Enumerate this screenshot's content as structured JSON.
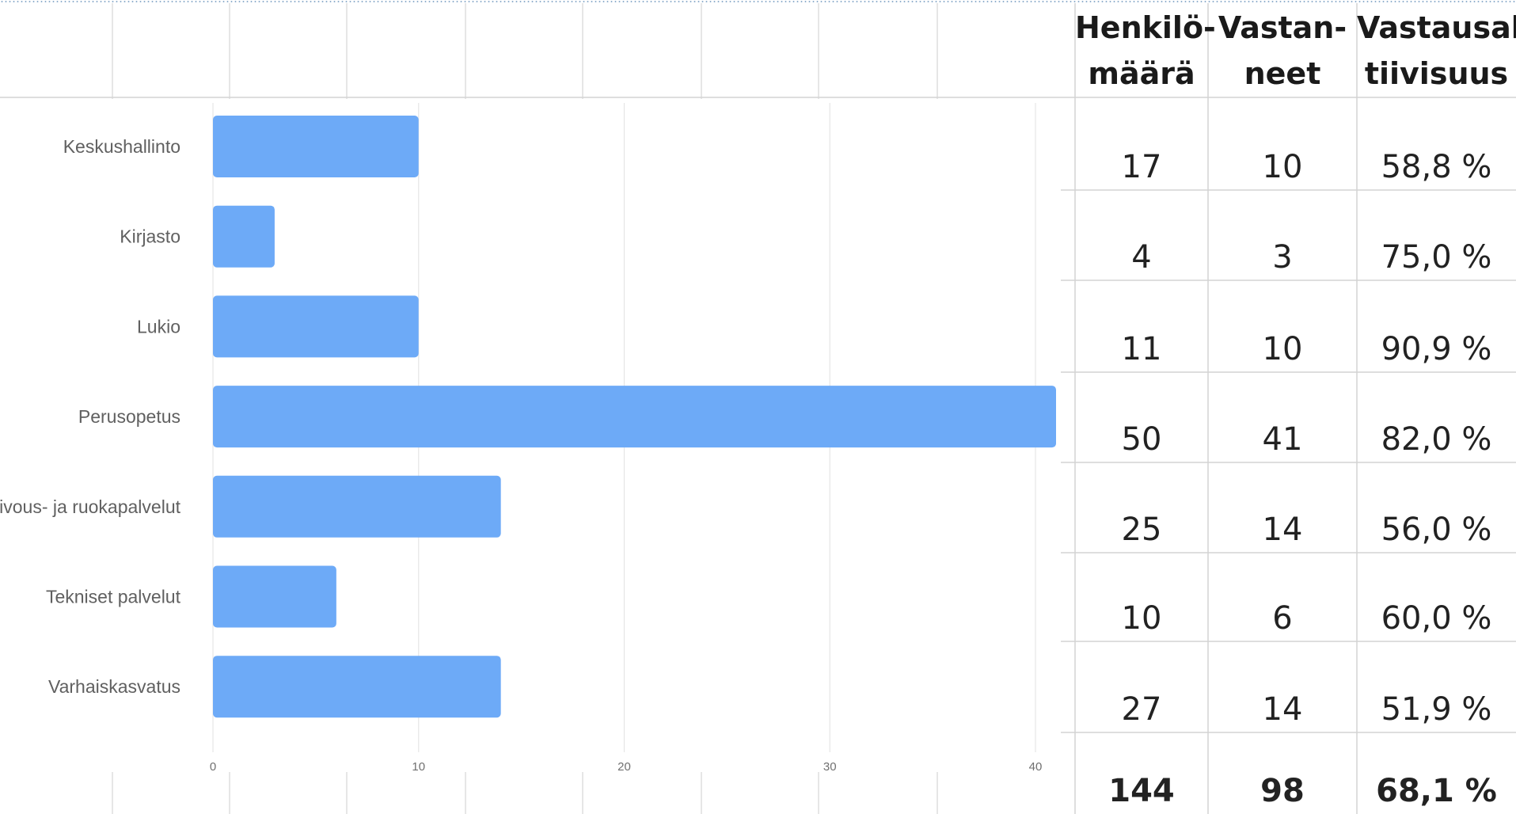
{
  "chart_data": {
    "type": "bar",
    "orientation": "horizontal",
    "categories": [
      "Keskushallinto",
      "Kirjasto",
      "Lukio",
      "Perusopetus",
      "Siivous- ja ruokapalvelut",
      "Tekniset palvelut",
      "Varhaiskasvatus"
    ],
    "values": [
      10,
      3,
      10,
      41,
      14,
      6,
      14
    ],
    "xlim": [
      0,
      41
    ],
    "xticks": [
      "0",
      "10",
      "20",
      "30",
      "40"
    ],
    "grid": true,
    "color": "#6daaf7"
  },
  "table": {
    "headers": [
      {
        "line1": "Henkilö-",
        "line2": "määrä"
      },
      {
        "line1": "Vastan-",
        "line2": "neet"
      },
      {
        "line1": "Vastausak",
        "line2": "tiivisuus"
      }
    ],
    "rows": [
      [
        "17",
        "10",
        "58,8 %"
      ],
      [
        "4",
        "3",
        "75,0 %"
      ],
      [
        "11",
        "10",
        "90,9 %"
      ],
      [
        "50",
        "41",
        "82,0 %"
      ],
      [
        "25",
        "14",
        "56,0 %"
      ],
      [
        "10",
        "6",
        "60,0 %"
      ],
      [
        "27",
        "14",
        "51,9 %"
      ]
    ],
    "total": [
      "144",
      "98",
      "68,1 %"
    ]
  }
}
